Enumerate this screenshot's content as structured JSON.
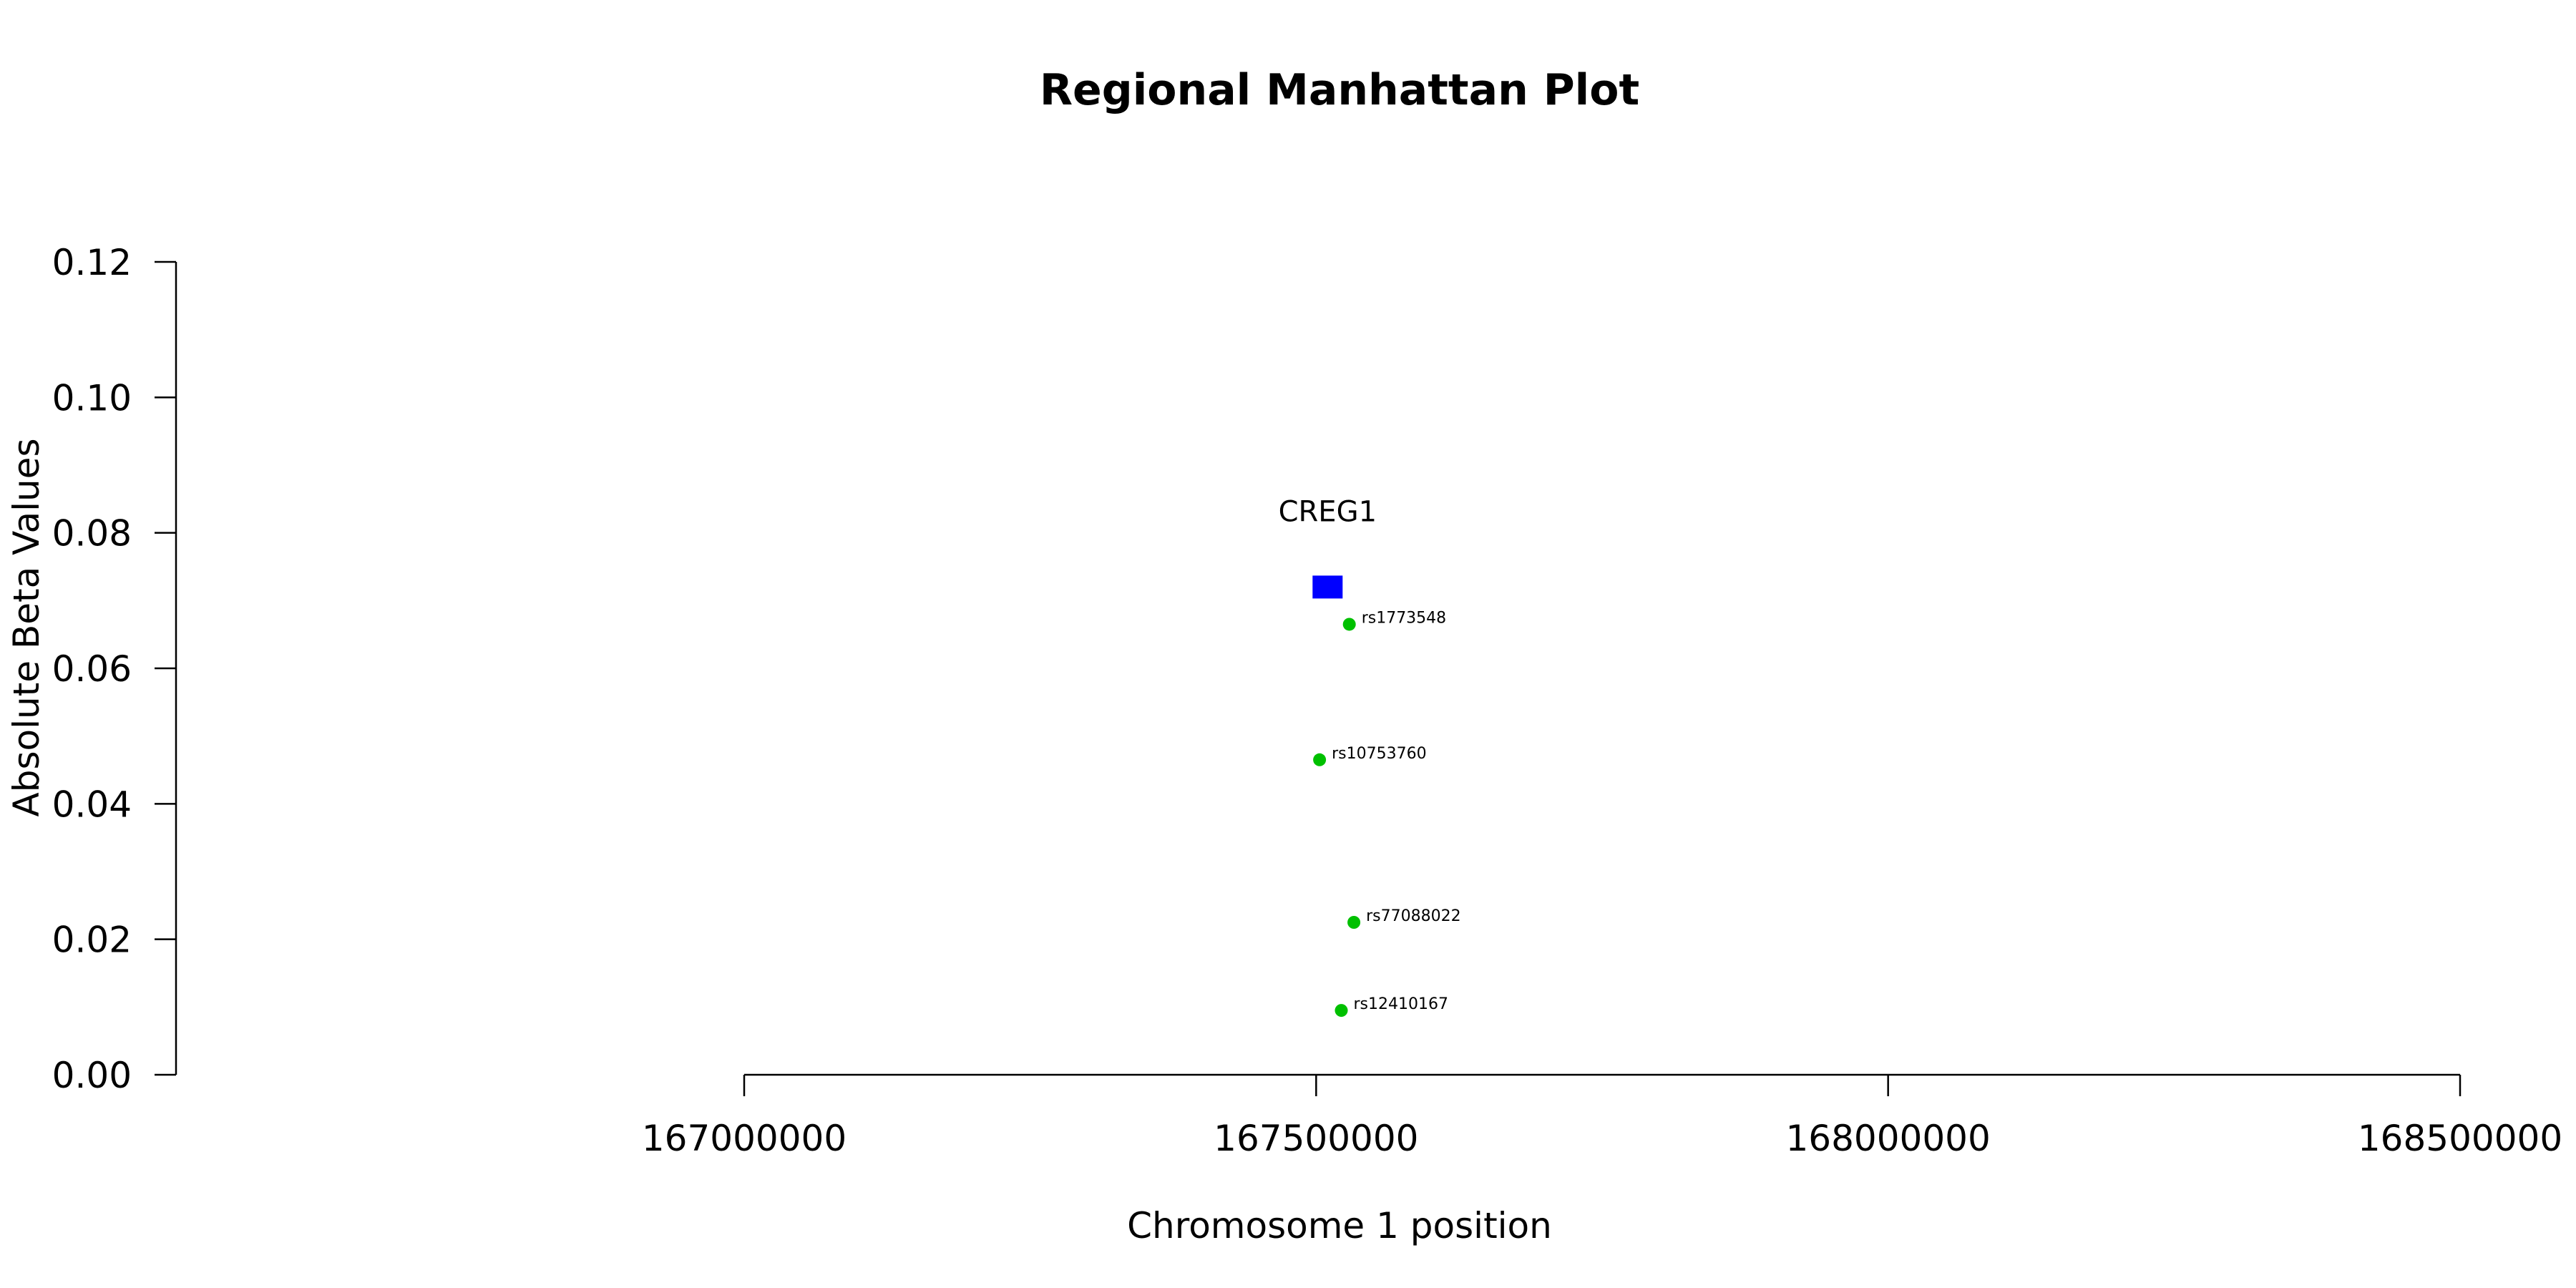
{
  "chart_data": {
    "type": "scatter",
    "title": "Regional Manhattan Plot",
    "xlabel": "Chromosome 1 position",
    "ylabel": "Absolute Beta Values",
    "xlim": [
      167000000,
      168500000
    ],
    "ylim": [
      0,
      0.12
    ],
    "x_ticks": [
      167000000,
      167500000,
      168000000,
      168500000
    ],
    "x_tick_labels": [
      "167000000",
      "167500000",
      "168000000",
      "168500000"
    ],
    "y_ticks": [
      0,
      0.02,
      0.04,
      0.06,
      0.08,
      0.1,
      0.12
    ],
    "y_tick_labels": [
      "0.00",
      "0.02",
      "0.04",
      "0.06",
      "0.08",
      "0.10",
      "0.12"
    ],
    "grid": false,
    "gene": {
      "label": "CREG1",
      "x": 167510000,
      "y": 0.072,
      "color": "#0000ff",
      "marker": "square"
    },
    "points": [
      {
        "label": "rs1773548",
        "x": 167529000,
        "y": 0.0665,
        "color": "#00c000"
      },
      {
        "label": "rs10753760",
        "x": 167503000,
        "y": 0.0465,
        "color": "#00c000"
      },
      {
        "label": "rs77088022",
        "x": 167533000,
        "y": 0.0225,
        "color": "#00c000"
      },
      {
        "label": "rs12410167",
        "x": 167522000,
        "y": 0.0095,
        "color": "#00c000"
      }
    ]
  }
}
